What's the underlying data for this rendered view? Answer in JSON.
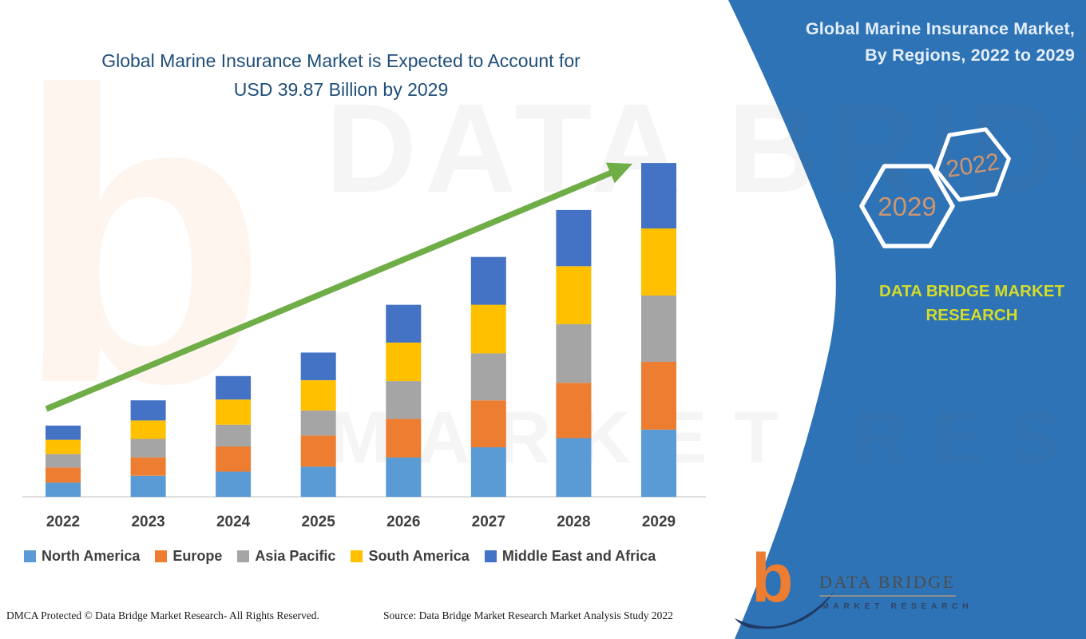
{
  "main": {
    "title_line1": "Global Marine Insurance Market is Expected to Account for",
    "title_line2": "USD 39.87 Billion by 2029",
    "footer_left": "DMCA Protected © Data Bridge Market Research- All Rights Reserved.",
    "footer_source": "Source: Data Bridge Market Research Market Analysis Study 2022"
  },
  "watermark": {
    "line1": "DATA BRIDGE",
    "line2": "MARKET RESEARCH",
    "letter_b": "b"
  },
  "side_panel": {
    "background_color": "#2E73B5",
    "header_line1": "Global Marine Insurance Market,",
    "header_line2": "By Regions, 2022 to 2029",
    "hexagons": [
      {
        "year": "2029"
      },
      {
        "year": "2022"
      }
    ],
    "hexagon_year_color": "#CC9571",
    "brand_line1": "DATA BRIDGE MARKET",
    "brand_line2": "RESEARCH",
    "brand_color": "#D3DB2B",
    "logo": {
      "letter": "b",
      "name_top": "DATA BRIDGE",
      "name_bottom": "MARKET RESEARCH"
    }
  },
  "chart_data": {
    "type": "bar",
    "stacked": true,
    "title": "Global Marine Insurance Market is Expected to Account for USD 39.87 Billion by 2029",
    "categories": [
      "2022",
      "2023",
      "2024",
      "2025",
      "2026",
      "2027",
      "2028",
      "2029"
    ],
    "series": [
      {
        "name": "North America",
        "color": "#5B9BD5",
        "values": [
          1.7,
          2.5,
          3.0,
          3.6,
          4.7,
          5.9,
          7.0,
          8.0
        ]
      },
      {
        "name": "Europe",
        "color": "#ED7D31",
        "values": [
          1.8,
          2.2,
          3.0,
          3.7,
          4.6,
          5.6,
          6.6,
          8.1
        ]
      },
      {
        "name": "Asia Pacific",
        "color": "#A5A5A5",
        "values": [
          1.6,
          2.2,
          2.6,
          3.0,
          4.5,
          5.6,
          7.0,
          7.9
        ]
      },
      {
        "name": "South America",
        "color": "#FFC000",
        "values": [
          1.7,
          2.2,
          3.0,
          3.6,
          4.6,
          5.8,
          6.9,
          8.0
        ]
      },
      {
        "name": "Middle East and Africa",
        "color": "#4472C4",
        "values": [
          1.7,
          2.4,
          2.8,
          3.3,
          4.5,
          5.7,
          6.7,
          7.8
        ]
      }
    ],
    "totals_estimated": [
      8.5,
      11.5,
      14.4,
      17.2,
      22.9,
      28.6,
      34.2,
      39.8
    ],
    "units_estimated": "USD Billion (normalized to 39.87 in 2029 per title; value axis not shown)",
    "xlabel": "",
    "ylabel": "",
    "value_axis_visible": false,
    "grid": false,
    "legend_position": "bottom",
    "trend_arrow": true,
    "trend_arrow_color": "#6FAD47"
  }
}
